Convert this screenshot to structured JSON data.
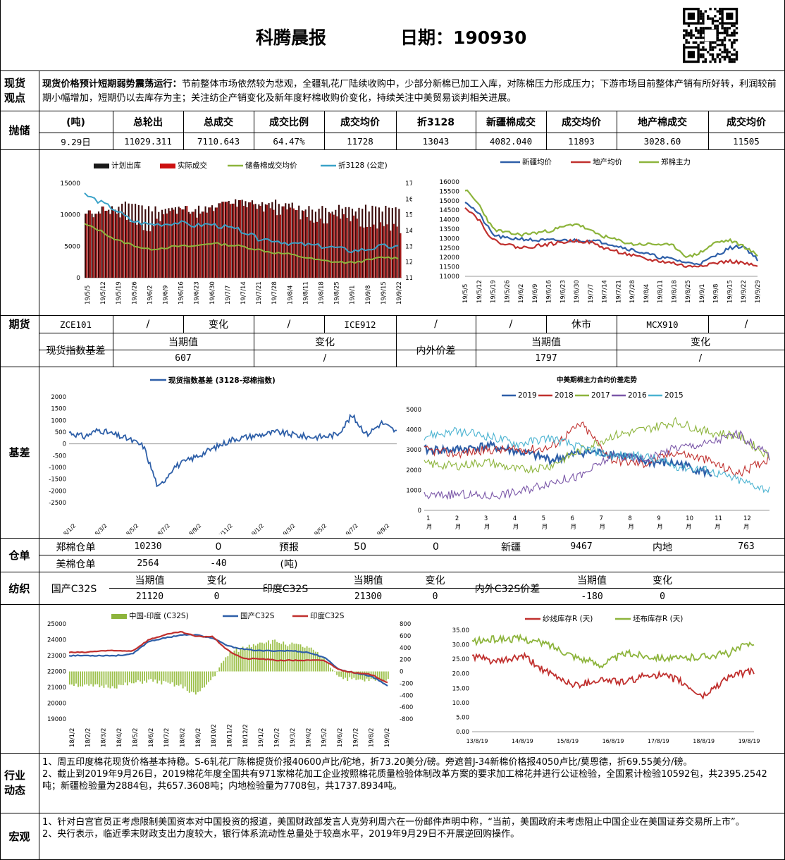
{
  "header": {
    "title": "科腾晨报",
    "date_label": "日期：190930"
  },
  "spot_view": {
    "label_1": "现货",
    "label_2": "观点",
    "headline": "现货价格预计短期弱势震荡运行：",
    "body": "节前整体市场依然较为悲观，全疆轧花厂陆续收购中，少部分新棉已加工入库，对陈棉压力形成压力；下游市场目前整体产销有所好转，利润较前期小幅增加，短期仍以去库存为主；关注纺企产销变化及新年度籽棉收购价变化，持续关注中美贸易谈判相关进展。"
  },
  "auction": {
    "label": "抛储",
    "headers": [
      "(吨)",
      "总轮出",
      "总成交",
      "成交比例",
      "成交均价",
      "折3128",
      "新疆棉成交",
      "成交均价",
      "地产棉成交",
      "成交均价"
    ],
    "values": [
      "9.29日",
      "11029.311",
      "7110.643",
      "64.47%",
      "11728",
      "13043",
      "4082.040",
      "11893",
      "3028.60",
      "11505"
    ]
  },
  "futures": {
    "label": "期货",
    "row1": [
      "ZCE101",
      "/",
      "变化",
      "/",
      "ICE912",
      "/",
      "/",
      "休市",
      "MCX910",
      "/"
    ],
    "row2_label": "现货指数基差",
    "row2_headers": [
      "当期值",
      "变化",
      "当期值",
      "变化"
    ],
    "row2_mid_label": "内外价差",
    "row3_values": [
      "607",
      "/",
      "1797",
      "/"
    ]
  },
  "basis": {
    "label": "基差"
  },
  "warehouse": {
    "label": "仓单",
    "row1": [
      "郑棉仓单",
      "10230",
      "0",
      "预报",
      "50",
      "0",
      "新疆",
      "9467",
      "内地",
      "763"
    ],
    "row2": [
      "美棉仓单",
      "2564",
      "-40",
      "(吨)"
    ]
  },
  "textile": {
    "label": "纺织",
    "cn": "国产C32S",
    "in": "印度C32S",
    "diff": "内外C32S价差",
    "h_cur": "当期值",
    "h_chg": "变化",
    "cn_val": "21120",
    "cn_chg": "0",
    "in_val": "21300",
    "in_chg": "0",
    "diff_val": "-180",
    "diff_chg": "0"
  },
  "industry": {
    "label_1": "行业",
    "label_2": "动态",
    "p1": "1、周五印度棉花现货价格基本持稳。S-6轧花厂陈棉提货价报40600卢比/砣地，折73.20美分/磅。旁遮普J-34新棉价格报4050卢比/莫恩德，折69.55美分/磅。",
    "p2": "2、截止到2019年9月26日，2019棉花年度全国共有971家棉花加工企业按照棉花质量检验体制改革方案的要求加工棉花并进行公证检验，全国累计检验10592包，共2395.2542吨；新疆检验量为2884包，共657.3608吨；内地检验量为7708包，共1737.8934吨。"
  },
  "macro": {
    "label": "宏观",
    "p1": "1、针对白宫官员正考虑限制美国资本对中国投资的报道，美国财政部发言人克劳利周六在一份邮件声明中称，“当前，美国政府未考虑阻止中国企业在美国证券交易所上市”。",
    "p2": "2、央行表示，临近季末财政支出力度较大，银行体系流动性总量处于较高水平，2019年9月29日不开展逆回购操作。"
  },
  "colors": {
    "blue": "#2e5fa8",
    "red": "#c0302e",
    "green": "#8db43c",
    "dark": "#1a1a1a",
    "bar_red": "#8b1a1a",
    "cyan": "#3aa2c8",
    "purple": "#7b57a8",
    "lcyan": "#4bb3d1"
  },
  "chart_data": [
    {
      "type": "bar",
      "legend": [
        "计划出库",
        "实际成交",
        "储备棉成交均价",
        "折3128 (公定)"
      ],
      "x_ticks": [
        "19/5/5",
        "19/5/12",
        "19/5/19",
        "19/5/26",
        "19/6/2",
        "19/6/9",
        "19/6/16",
        "19/6/23",
        "19/6/30",
        "19/7/7",
        "19/7/14",
        "19/7/21",
        "19/7/28",
        "19/8/4",
        "19/8/11",
        "19/8/18",
        "19/8/25",
        "19/9/1",
        "19/9/8",
        "19/9/15",
        "19/9/22"
      ],
      "y_left_ticks": [
        "0",
        "5000",
        "10000",
        "15000"
      ],
      "y_right_ticks": [
        "11000",
        "12000",
        "13000",
        "14000",
        "15000",
        "16000",
        "17000"
      ],
      "ylim_left": [
        0,
        15000
      ],
      "ylim_right": [
        11000,
        17000
      ],
      "series": [
        {
          "name": "计划出库",
          "values": [
            10000,
            11000,
            11000,
            12000,
            11000,
            11000,
            11000,
            11000,
            11000,
            12000,
            12000,
            12000,
            12000,
            11500,
            11000,
            11000,
            11000,
            11000,
            11000,
            11000,
            11000
          ]
        },
        {
          "name": "实际成交",
          "values": [
            10000,
            11000,
            10500,
            8000,
            7500,
            9500,
            11000,
            10500,
            11500,
            12000,
            12000,
            11500,
            11000,
            10500,
            10000,
            9000,
            10000,
            9500,
            8000,
            8500,
            7500
          ]
        },
        {
          "name": "储备棉成交均价",
          "values": [
            14400,
            14000,
            13400,
            13100,
            12800,
            12900,
            13000,
            13000,
            13200,
            13100,
            13000,
            12800,
            12600,
            12500,
            12300,
            12100,
            12000,
            11950,
            12100,
            12300,
            12250
          ]
        },
        {
          "name": "折3128 (公定)",
          "values": [
            16300,
            15800,
            15300,
            14600,
            14400,
            14400,
            14500,
            14300,
            14400,
            14200,
            14000,
            13500,
            13400,
            13200,
            13100,
            13000,
            12900,
            12700,
            12800,
            13000,
            12900
          ]
        }
      ]
    },
    {
      "type": "line",
      "legend": [
        "新疆均价",
        "地产均价",
        "郑棉主力"
      ],
      "x_ticks": [
        "19/5/5",
        "19/5/12",
        "19/5/19",
        "19/5/26",
        "19/6/2",
        "19/6/9",
        "19/6/16",
        "19/6/23",
        "19/6/30",
        "19/7/7",
        "19/7/14",
        "19/7/21",
        "19/7/28",
        "19/8/4",
        "19/8/11",
        "19/8/18",
        "19/8/25",
        "19/9/1",
        "19/9/8",
        "19/9/15",
        "19/9/22",
        "19/9/29"
      ],
      "y_ticks": [
        "11000",
        "11500",
        "12000",
        "12500",
        "13000",
        "13500",
        "14000",
        "14500",
        "15000",
        "15500",
        "16000"
      ],
      "ylim": [
        11000,
        16000
      ],
      "series": [
        {
          "name": "新疆均价",
          "values": [
            15000,
            14300,
            13200,
            13000,
            13000,
            12900,
            12900,
            12900,
            12900,
            12900,
            12800,
            12600,
            12400,
            12200,
            12000,
            11900,
            11700,
            11700,
            12100,
            12500,
            12600,
            11900
          ]
        },
        {
          "name": "地产均价",
          "values": [
            14700,
            14000,
            12900,
            12700,
            12500,
            12600,
            12700,
            12800,
            12900,
            12800,
            12500,
            12300,
            12100,
            11900,
            11800,
            11700,
            11500,
            11600,
            11700,
            11800,
            11700,
            11500
          ]
        },
        {
          "name": "郑棉主力",
          "values": [
            15600,
            14800,
            13500,
            13300,
            13200,
            13300,
            13400,
            13600,
            13800,
            13400,
            13100,
            12900,
            12700,
            12700,
            12700,
            12600,
            12000,
            12300,
            12800,
            12900,
            12600,
            12100
          ]
        }
      ]
    },
    {
      "type": "line",
      "title": "现货指数基差 (3128-郑棉指数)",
      "x_ticks": [
        "2018/1/2",
        "2018/3/2",
        "2018/5/2",
        "2018/7/2",
        "2018/9/2",
        "2018/11/2",
        "2019/1/2",
        "2019/3/2",
        "2019/5/2",
        "2019/7/2",
        "2019/9/2"
      ],
      "y_ticks": [
        "-2500",
        "-2000",
        "-1500",
        "-1000",
        "-500",
        "0",
        "500",
        "1000",
        "1500",
        "2000"
      ],
      "ylim": [
        -2500,
        2000
      ],
      "series": [
        {
          "name": "现货指数基差",
          "values": [
            500,
            300,
            600,
            400,
            200,
            -100,
            -1900,
            -1000,
            -700,
            -400,
            -100,
            200,
            300,
            400,
            500,
            400,
            300,
            300,
            400,
            1200,
            400,
            900,
            500
          ]
        }
      ]
    },
    {
      "type": "line",
      "title": "中美期棉主力合约价差走势",
      "x_ticks": [
        "1月",
        "2月",
        "3月",
        "4月",
        "5月",
        "6月",
        "7月",
        "8月",
        "9月",
        "10月",
        "11月",
        "12月"
      ],
      "y_ticks": [
        "0",
        "1000",
        "2000",
        "3000",
        "4000",
        "5000"
      ],
      "ylim": [
        0,
        5000
      ],
      "series": [
        {
          "name": "2019",
          "values": [
            3000,
            3000,
            3200,
            2900,
            2500,
            2900,
            2800,
            2400,
            2300,
            1800
          ]
        },
        {
          "name": "2018",
          "values": [
            3000,
            2800,
            3000,
            3000,
            3100,
            4300,
            2500,
            2300,
            2900,
            2500,
            1800,
            2600
          ]
        },
        {
          "name": "2017",
          "values": [
            2300,
            2200,
            2400,
            2000,
            2200,
            3000,
            3700,
            4000,
            4400,
            3900,
            3700,
            2700
          ]
        },
        {
          "name": "2016",
          "values": [
            700,
            800,
            700,
            900,
            1400,
            1700,
            2700,
            2500,
            3100,
            3300,
            3800,
            2700
          ]
        },
        {
          "name": "2015",
          "values": [
            3700,
            3900,
            3700,
            3300,
            3600,
            3100,
            2700,
            2700,
            2200,
            2000,
            1500,
            1000
          ]
        }
      ]
    },
    {
      "type": "bar",
      "legend": [
        "中国-印度 (C32S)",
        "国产C32S",
        "印度C32S"
      ],
      "x_ticks": [
        "18/1/2",
        "18/2/2",
        "18/3/2",
        "18/4/2",
        "18/5/2",
        "18/6/2",
        "18/7/2",
        "18/8/2",
        "18/9/2",
        "18/10/2",
        "18/11/2",
        "18/12/2",
        "19/1/2",
        "19/2/2",
        "19/3/2",
        "19/4/2",
        "19/5/2",
        "19/6/2",
        "19/7/2",
        "19/8/2",
        "19/9/2"
      ],
      "y_left_ticks": [
        "19000",
        "20000",
        "21000",
        "22000",
        "23000",
        "24000",
        "25000"
      ],
      "y_right_ticks": [
        "-800",
        "-600",
        "-400",
        "-200",
        "0",
        "200",
        "400",
        "600",
        "800"
      ],
      "ylim_left": [
        19000,
        25000
      ],
      "ylim_right": [
        -800,
        800
      ],
      "series": [
        {
          "name": "中国-印度 (C32S)",
          "values": [
            -200,
            -250,
            -250,
            -250,
            -200,
            -150,
            -200,
            -250,
            -400,
            -100,
            300,
            400,
            500,
            500,
            450,
            400,
            200,
            -100,
            -150,
            -150,
            -150
          ]
        },
        {
          "name": "国产C32S",
          "values": [
            23000,
            23000,
            23000,
            23000,
            23100,
            23900,
            24100,
            24300,
            24300,
            24100,
            23600,
            23400,
            23300,
            23300,
            23300,
            23200,
            22900,
            22100,
            21900,
            21700,
            21100
          ]
        },
        {
          "name": "印度C32S",
          "values": [
            23200,
            23200,
            23300,
            23300,
            23300,
            24000,
            24300,
            24500,
            24200,
            24200,
            23300,
            22800,
            22800,
            22700,
            22700,
            22700,
            22700,
            22100,
            21900,
            21800,
            21300
          ]
        }
      ]
    },
    {
      "type": "line",
      "legend": [
        "纱线库存R (天)",
        "坯布库存R (天)"
      ],
      "x_ticks": [
        "13/8/19",
        "14/8/19",
        "15/8/19",
        "16/8/19",
        "17/8/19",
        "18/8/19",
        "19/8/19"
      ],
      "y_ticks": [
        "0.00",
        "5.00",
        "10.00",
        "15.00",
        "20.00",
        "25.00",
        "30.00",
        "35.00"
      ],
      "ylim": [
        0,
        35
      ],
      "series": [
        {
          "name": "纱线库存R (天)",
          "values": [
            26,
            24,
            26,
            20,
            16,
            18,
            17,
            20,
            18,
            12,
            19,
            21
          ]
        },
        {
          "name": "坯布库存R (天)",
          "values": [
            31,
            32,
            32,
            30,
            26,
            23,
            27,
            26,
            25,
            26,
            27,
            31
          ]
        }
      ]
    }
  ]
}
